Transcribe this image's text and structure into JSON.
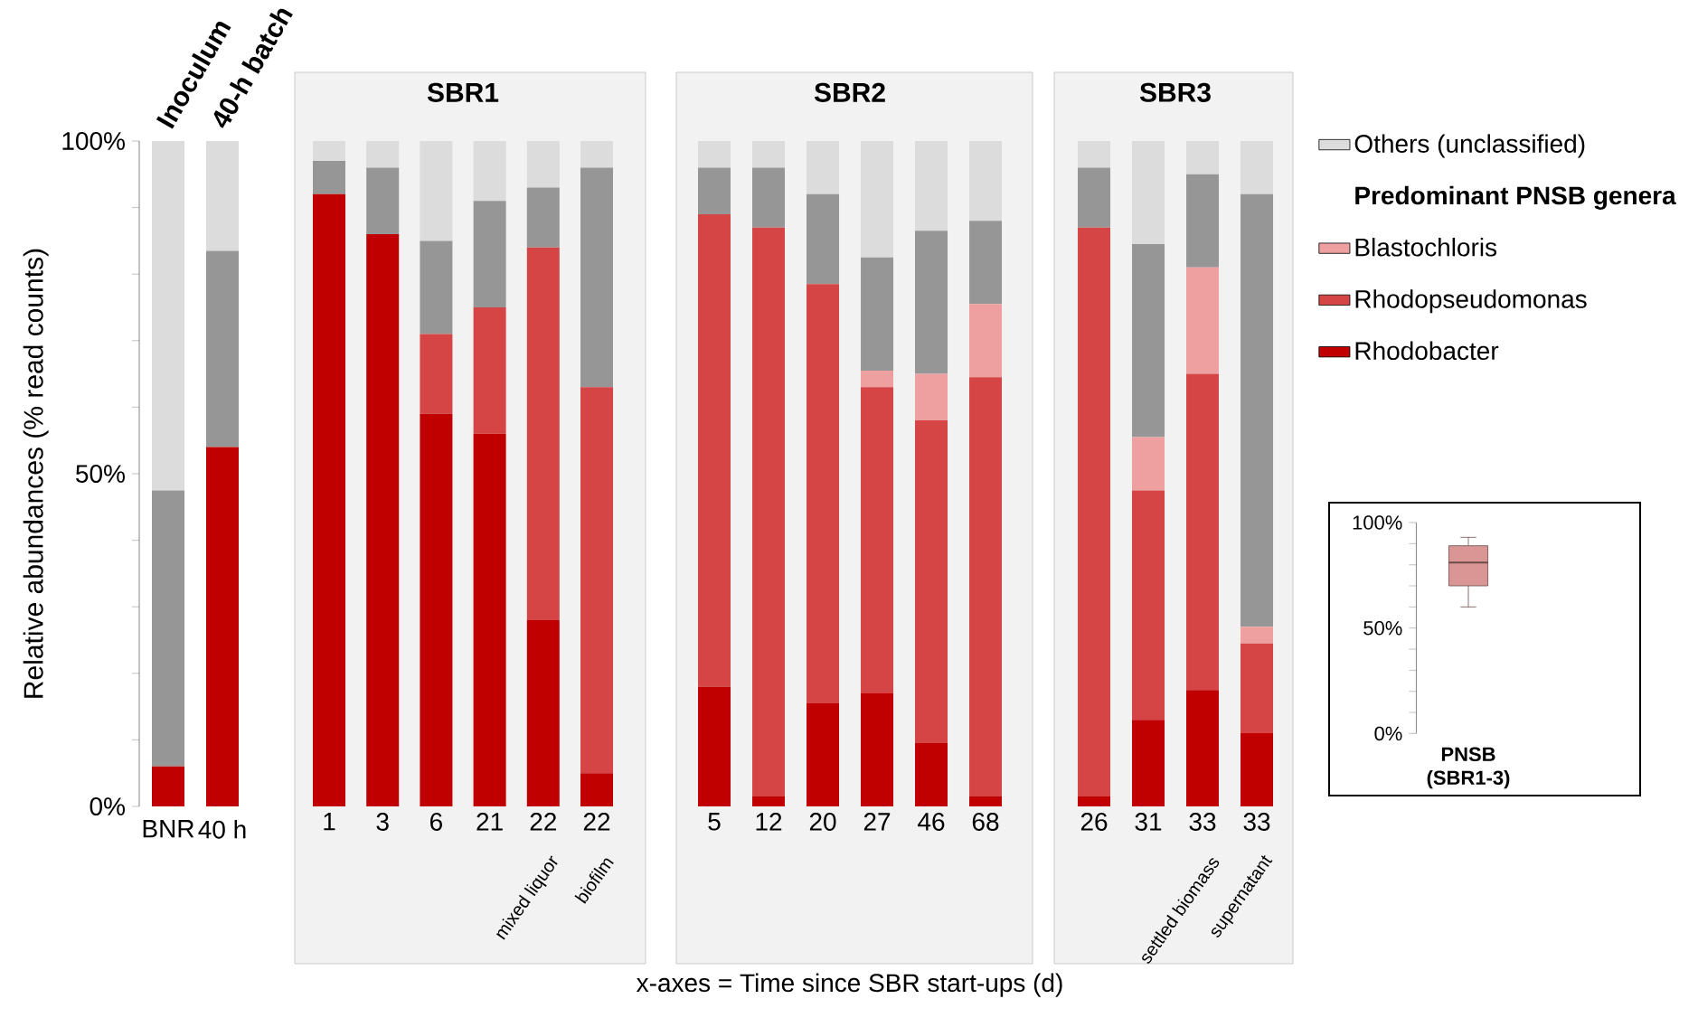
{
  "chart_data": [
    {
      "type": "bar",
      "stacked": true,
      "ylabel": "Relative abundances (% read counts)",
      "categories": [
        "BNR",
        "40 h"
      ],
      "annotations": [
        "Inoculum",
        "40-h batch"
      ],
      "series": [
        {
          "color": "#c00000",
          "values": [
            6,
            54
          ]
        },
        {
          "color": "#d64545",
          "values": [
            0,
            0
          ]
        },
        {
          "color": "#eea0a0",
          "values": [
            0,
            0
          ]
        },
        {
          "color": "#969696",
          "values": [
            41.5,
            29.5
          ]
        },
        {
          "color": "#dcdcdc",
          "values": [
            52.5,
            16.5
          ]
        }
      ],
      "ylim": [
        0,
        100
      ],
      "yticks": [
        {
          "value": 0,
          "label": "0%"
        },
        {
          "value": 10,
          "label": null
        },
        {
          "value": 20,
          "label": null
        },
        {
          "value": 30,
          "label": null
        },
        {
          "value": 40,
          "label": null
        },
        {
          "value": 50,
          "label": "50%"
        },
        {
          "value": 60,
          "label": null
        },
        {
          "value": 70,
          "label": null
        },
        {
          "value": 80,
          "label": null
        },
        {
          "value": 90,
          "label": null
        },
        {
          "value": 100,
          "label": "100%"
        }
      ]
    },
    {
      "type": "bar",
      "stacked": true,
      "title": "SBR1",
      "categories": [
        "1",
        "3",
        "6",
        "21",
        "22",
        "22"
      ],
      "annotations": [
        "mixed liquor",
        "biofilm"
      ],
      "series": [
        {
          "color": "#c00000",
          "values": [
            92,
            86,
            59,
            56,
            28,
            5
          ]
        },
        {
          "color": "#d64545",
          "values": [
            0,
            0,
            12,
            19,
            56,
            58
          ]
        },
        {
          "color": "#eea0a0",
          "values": [
            0,
            0,
            0,
            0,
            0,
            0
          ]
        },
        {
          "color": "#969696",
          "values": [
            5,
            10,
            14,
            16,
            9,
            33
          ]
        },
        {
          "color": "#dcdcdc",
          "values": [
            3,
            4,
            15,
            9,
            7,
            4
          ]
        }
      ],
      "ylim": [
        0,
        100
      ],
      "tick_labels": "x"
    },
    {
      "type": "bar",
      "stacked": true,
      "title": "SBR2",
      "xlabel": "x-axes = Time since SBR start-ups (d)",
      "categories": [
        "5",
        "12",
        "20",
        "27",
        "46",
        "68"
      ],
      "series": [
        {
          "color": "#c00000",
          "values": [
            18,
            1.5,
            15.5,
            17,
            9.5,
            1.5
          ]
        },
        {
          "color": "#d64545",
          "values": [
            71,
            85.5,
            63,
            46,
            48.5,
            63
          ]
        },
        {
          "color": "#eea0a0",
          "values": [
            0,
            0,
            0,
            2.5,
            7,
            11
          ]
        },
        {
          "color": "#969696",
          "values": [
            7,
            9,
            13.5,
            17,
            21.5,
            12.5
          ]
        },
        {
          "color": "#dcdcdc",
          "values": [
            4,
            4,
            8,
            17.5,
            13.5,
            12
          ]
        }
      ],
      "ylim": [
        0,
        100
      ],
      "tick_labels": "x"
    },
    {
      "type": "bar",
      "stacked": true,
      "title": "SBR3",
      "categories": [
        "26",
        "31",
        "33",
        "33"
      ],
      "annotations": [
        "settled biomass",
        "supernatant"
      ],
      "legend": "right",
      "legend_title": "Predominant PNSB genera",
      "series": [
        {
          "name": "Rhodobacter",
          "color": "#c00000",
          "values": [
            1.5,
            13,
            17.5,
            11
          ]
        },
        {
          "name": "Rhodopseudomonas",
          "color": "#d64545",
          "values": [
            85.5,
            34.5,
            47.5,
            13.5
          ]
        },
        {
          "name": "Blastochloris",
          "color": "#eea0a0",
          "values": [
            0,
            8,
            16,
            2.5
          ]
        },
        {
          "color": "#969696",
          "values": [
            9,
            29,
            14,
            65
          ]
        },
        {
          "name": "Others (unclassified)",
          "color": "#dcdcdc",
          "values": [
            4,
            15.5,
            5,
            8
          ]
        }
      ],
      "ylim": [
        0,
        100
      ],
      "tick_labels": "x"
    },
    {
      "type": "box",
      "categories": [
        "PNSB (SBR1-3)"
      ],
      "color": "#d99694",
      "boxes": [
        {
          "low": 60,
          "q1": 70,
          "median": 81,
          "q3": 89,
          "high": 93
        }
      ],
      "ylim": [
        0,
        100
      ],
      "yticks": [
        {
          "value": 0,
          "label": "0%"
        },
        {
          "value": 10,
          "label": null
        },
        {
          "value": 20,
          "label": null
        },
        {
          "value": 30,
          "label": null
        },
        {
          "value": 40,
          "label": null
        },
        {
          "value": 50,
          "label": "50%"
        },
        {
          "value": 60,
          "label": null
        },
        {
          "value": 70,
          "label": null
        },
        {
          "value": 80,
          "label": null
        },
        {
          "value": 90,
          "label": null
        },
        {
          "value": 100,
          "label": "100%"
        }
      ]
    }
  ]
}
